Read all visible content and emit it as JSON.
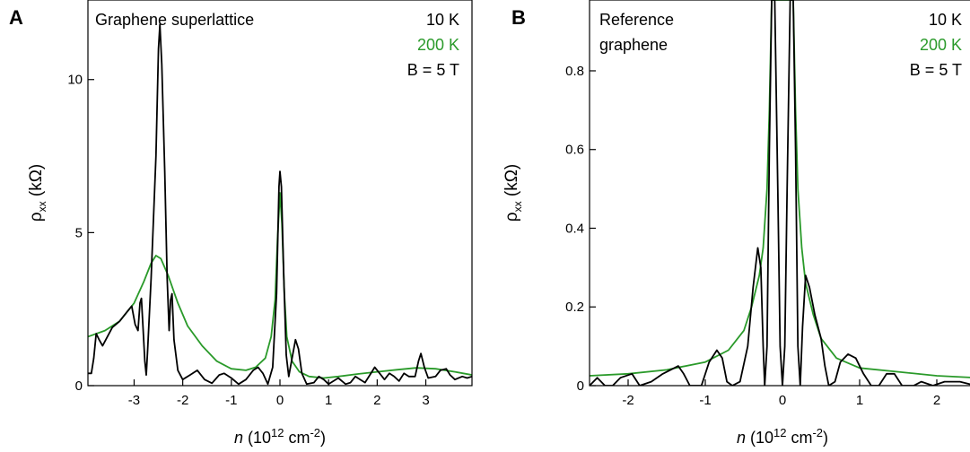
{
  "colors": {
    "series_10K": "#000000",
    "series_200K": "#2a9a2a"
  },
  "chart_data": [
    {
      "panel": "A",
      "type": "line",
      "title": "Graphene superlattice",
      "legend": [
        "10 K",
        "200 K",
        "B = 5 T"
      ],
      "legend_placement": "top-right",
      "xlabel": {
        "var": "n",
        "pre": " (10",
        "sup1": "12",
        "mid": " cm",
        "sup2": "-2",
        "post": ")"
      },
      "ylabel": {
        "rho": "ρ",
        "sub": "xx",
        "unit": " (kΩ)"
      },
      "xlim": [
        -3.95,
        3.95
      ],
      "ylim": [
        0,
        12.6
      ],
      "xticks": [
        -3,
        -2,
        -1,
        0,
        1,
        2,
        3
      ],
      "yticks": [
        0,
        5,
        10
      ],
      "grid": false,
      "series": [
        {
          "name": "10 K",
          "color": "#000000",
          "points": [
            [
              -3.95,
              0.4
            ],
            [
              -3.88,
              0.4
            ],
            [
              -3.83,
              0.9
            ],
            [
              -3.78,
              1.7
            ],
            [
              -3.72,
              1.5
            ],
            [
              -3.65,
              1.3
            ],
            [
              -3.55,
              1.6
            ],
            [
              -3.45,
              1.9
            ],
            [
              -3.3,
              2.1
            ],
            [
              -3.15,
              2.4
            ],
            [
              -3.05,
              2.6
            ],
            [
              -2.98,
              2.0
            ],
            [
              -2.92,
              1.8
            ],
            [
              -2.88,
              2.7
            ],
            [
              -2.85,
              2.85
            ],
            [
              -2.82,
              2.0
            ],
            [
              -2.78,
              0.8
            ],
            [
              -2.75,
              0.35
            ],
            [
              -2.72,
              1.2
            ],
            [
              -2.65,
              3.5
            ],
            [
              -2.55,
              7.5
            ],
            [
              -2.5,
              11.0
            ],
            [
              -2.47,
              11.8
            ],
            [
              -2.43,
              10.5
            ],
            [
              -2.37,
              7.0
            ],
            [
              -2.32,
              3.5
            ],
            [
              -2.28,
              1.8
            ],
            [
              -2.25,
              2.8
            ],
            [
              -2.22,
              3.0
            ],
            [
              -2.18,
              1.5
            ],
            [
              -2.1,
              0.5
            ],
            [
              -2.0,
              0.2
            ],
            [
              -1.85,
              0.35
            ],
            [
              -1.7,
              0.5
            ],
            [
              -1.55,
              0.2
            ],
            [
              -1.4,
              0.08
            ],
            [
              -1.25,
              0.35
            ],
            [
              -1.15,
              0.4
            ],
            [
              -1.0,
              0.25
            ],
            [
              -0.85,
              0.05
            ],
            [
              -0.7,
              0.2
            ],
            [
              -0.55,
              0.5
            ],
            [
              -0.45,
              0.6
            ],
            [
              -0.35,
              0.4
            ],
            [
              -0.25,
              0.05
            ],
            [
              -0.15,
              0.6
            ],
            [
              -0.07,
              3.0
            ],
            [
              -0.02,
              6.5
            ],
            [
              0.0,
              7.0
            ],
            [
              0.03,
              6.5
            ],
            [
              0.08,
              3.5
            ],
            [
              0.13,
              1.0
            ],
            [
              0.18,
              0.3
            ],
            [
              0.25,
              0.9
            ],
            [
              0.32,
              1.5
            ],
            [
              0.38,
              1.2
            ],
            [
              0.45,
              0.4
            ],
            [
              0.55,
              0.05
            ],
            [
              0.7,
              0.1
            ],
            [
              0.8,
              0.3
            ],
            [
              0.9,
              0.2
            ],
            [
              1.0,
              0.05
            ],
            [
              1.1,
              0.15
            ],
            [
              1.2,
              0.25
            ],
            [
              1.35,
              0.05
            ],
            [
              1.45,
              0.1
            ],
            [
              1.55,
              0.3
            ],
            [
              1.65,
              0.2
            ],
            [
              1.75,
              0.1
            ],
            [
              1.85,
              0.35
            ],
            [
              1.95,
              0.6
            ],
            [
              2.05,
              0.4
            ],
            [
              2.15,
              0.2
            ],
            [
              2.25,
              0.4
            ],
            [
              2.35,
              0.3
            ],
            [
              2.45,
              0.15
            ],
            [
              2.55,
              0.4
            ],
            [
              2.65,
              0.3
            ],
            [
              2.78,
              0.3
            ],
            [
              2.85,
              0.8
            ],
            [
              2.9,
              1.05
            ],
            [
              2.97,
              0.6
            ],
            [
              3.05,
              0.25
            ],
            [
              3.2,
              0.3
            ],
            [
              3.3,
              0.5
            ],
            [
              3.42,
              0.55
            ],
            [
              3.5,
              0.35
            ],
            [
              3.6,
              0.2
            ],
            [
              3.75,
              0.3
            ],
            [
              3.85,
              0.25
            ],
            [
              3.95,
              0.3
            ]
          ]
        },
        {
          "name": "200 K",
          "color": "#2a9a2a",
          "points": [
            [
              -3.95,
              1.6
            ],
            [
              -3.6,
              1.8
            ],
            [
              -3.3,
              2.1
            ],
            [
              -3.0,
              2.7
            ],
            [
              -2.8,
              3.4
            ],
            [
              -2.65,
              4.0
            ],
            [
              -2.55,
              4.25
            ],
            [
              -2.45,
              4.15
            ],
            [
              -2.3,
              3.6
            ],
            [
              -2.1,
              2.7
            ],
            [
              -1.9,
              1.95
            ],
            [
              -1.6,
              1.3
            ],
            [
              -1.3,
              0.8
            ],
            [
              -1.0,
              0.55
            ],
            [
              -0.7,
              0.5
            ],
            [
              -0.5,
              0.6
            ],
            [
              -0.3,
              0.9
            ],
            [
              -0.18,
              1.6
            ],
            [
              -0.1,
              2.8
            ],
            [
              -0.05,
              4.8
            ],
            [
              0.0,
              6.3
            ],
            [
              0.04,
              5.3
            ],
            [
              0.09,
              3.0
            ],
            [
              0.14,
              1.6
            ],
            [
              0.25,
              0.8
            ],
            [
              0.4,
              0.45
            ],
            [
              0.6,
              0.3
            ],
            [
              0.9,
              0.25
            ],
            [
              1.2,
              0.3
            ],
            [
              1.6,
              0.38
            ],
            [
              2.0,
              0.45
            ],
            [
              2.4,
              0.52
            ],
            [
              2.8,
              0.58
            ],
            [
              3.2,
              0.55
            ],
            [
              3.6,
              0.45
            ],
            [
              3.95,
              0.35
            ]
          ]
        }
      ]
    },
    {
      "panel": "B",
      "type": "line",
      "title": "Reference\ngraphene",
      "title_lines": [
        "Reference",
        "graphene"
      ],
      "legend": [
        "10 K",
        "200 K",
        "B = 5 T"
      ],
      "legend_placement": "top-right",
      "xlabel": {
        "var": "n",
        "pre": " (10",
        "sup1": "12",
        "mid": " cm",
        "sup2": "-2",
        "post": ")"
      },
      "ylabel": {
        "rho": "ρ",
        "sub": "xx",
        "unit": " (kΩ)"
      },
      "xlim": [
        -2.5,
        2.5
      ],
      "ylim": [
        0,
        0.98
      ],
      "xticks": [
        -2,
        -1,
        0,
        1,
        2
      ],
      "yticks": [
        0,
        0.2,
        0.4,
        0.6,
        0.8
      ],
      "ytick_labels": [
        "0",
        "0.2",
        "0.4",
        "0.6",
        "0.8"
      ],
      "grid": false,
      "series": [
        {
          "name": "10 K",
          "color": "#000000",
          "points": [
            [
              -2.5,
              0.0
            ],
            [
              -2.4,
              0.02
            ],
            [
              -2.3,
              0.0
            ],
            [
              -2.2,
              0.0
            ],
            [
              -2.1,
              0.02
            ],
            [
              -1.95,
              0.03
            ],
            [
              -1.85,
              0.0
            ],
            [
              -1.7,
              0.01
            ],
            [
              -1.55,
              0.03
            ],
            [
              -1.45,
              0.04
            ],
            [
              -1.35,
              0.05
            ],
            [
              -1.28,
              0.03
            ],
            [
              -1.2,
              0.0
            ],
            [
              -1.05,
              0.0
            ],
            [
              -0.95,
              0.06
            ],
            [
              -0.85,
              0.09
            ],
            [
              -0.78,
              0.07
            ],
            [
              -0.72,
              0.01
            ],
            [
              -0.65,
              0.0
            ],
            [
              -0.55,
              0.01
            ],
            [
              -0.45,
              0.1
            ],
            [
              -0.38,
              0.25
            ],
            [
              -0.32,
              0.35
            ],
            [
              -0.28,
              0.3
            ],
            [
              -0.25,
              0.1
            ],
            [
              -0.23,
              0.0
            ],
            [
              -0.2,
              0.1
            ],
            [
              -0.17,
              0.6
            ],
            [
              -0.14,
              0.98
            ],
            [
              -0.1,
              0.98
            ],
            [
              -0.06,
              0.5
            ],
            [
              -0.03,
              0.1
            ],
            [
              0.0,
              0.0
            ],
            [
              0.03,
              0.1
            ],
            [
              0.06,
              0.5
            ],
            [
              0.1,
              0.98
            ],
            [
              0.14,
              0.98
            ],
            [
              0.17,
              0.6
            ],
            [
              0.2,
              0.1
            ],
            [
              0.23,
              0.0
            ],
            [
              0.26,
              0.15
            ],
            [
              0.3,
              0.28
            ],
            [
              0.35,
              0.25
            ],
            [
              0.42,
              0.18
            ],
            [
              0.5,
              0.12
            ],
            [
              0.55,
              0.05
            ],
            [
              0.6,
              0.0
            ],
            [
              0.68,
              0.01
            ],
            [
              0.75,
              0.06
            ],
            [
              0.85,
              0.08
            ],
            [
              0.95,
              0.07
            ],
            [
              1.05,
              0.03
            ],
            [
              1.15,
              0.0
            ],
            [
              1.25,
              0.0
            ],
            [
              1.35,
              0.03
            ],
            [
              1.45,
              0.03
            ],
            [
              1.55,
              0.0
            ],
            [
              1.7,
              0.0
            ],
            [
              1.8,
              0.01
            ],
            [
              1.95,
              0.0
            ],
            [
              2.1,
              0.01
            ],
            [
              2.3,
              0.01
            ],
            [
              2.5,
              0.0
            ]
          ]
        },
        {
          "name": "200 K",
          "color": "#2a9a2a",
          "points": [
            [
              -2.5,
              0.025
            ],
            [
              -2.0,
              0.03
            ],
            [
              -1.5,
              0.04
            ],
            [
              -1.0,
              0.06
            ],
            [
              -0.7,
              0.09
            ],
            [
              -0.5,
              0.14
            ],
            [
              -0.4,
              0.2
            ],
            [
              -0.3,
              0.28
            ],
            [
              -0.25,
              0.35
            ],
            [
              -0.2,
              0.5
            ],
            [
              -0.17,
              0.7
            ],
            [
              -0.14,
              0.98
            ],
            [
              -0.08,
              0.98
            ],
            [
              0.08,
              0.98
            ],
            [
              0.14,
              0.98
            ],
            [
              0.17,
              0.7
            ],
            [
              0.2,
              0.5
            ],
            [
              0.25,
              0.35
            ],
            [
              0.3,
              0.26
            ],
            [
              0.4,
              0.18
            ],
            [
              0.5,
              0.12
            ],
            [
              0.7,
              0.07
            ],
            [
              1.0,
              0.045
            ],
            [
              1.5,
              0.035
            ],
            [
              2.0,
              0.025
            ],
            [
              2.5,
              0.02
            ]
          ]
        }
      ]
    }
  ],
  "panels": [
    "A",
    "B"
  ]
}
